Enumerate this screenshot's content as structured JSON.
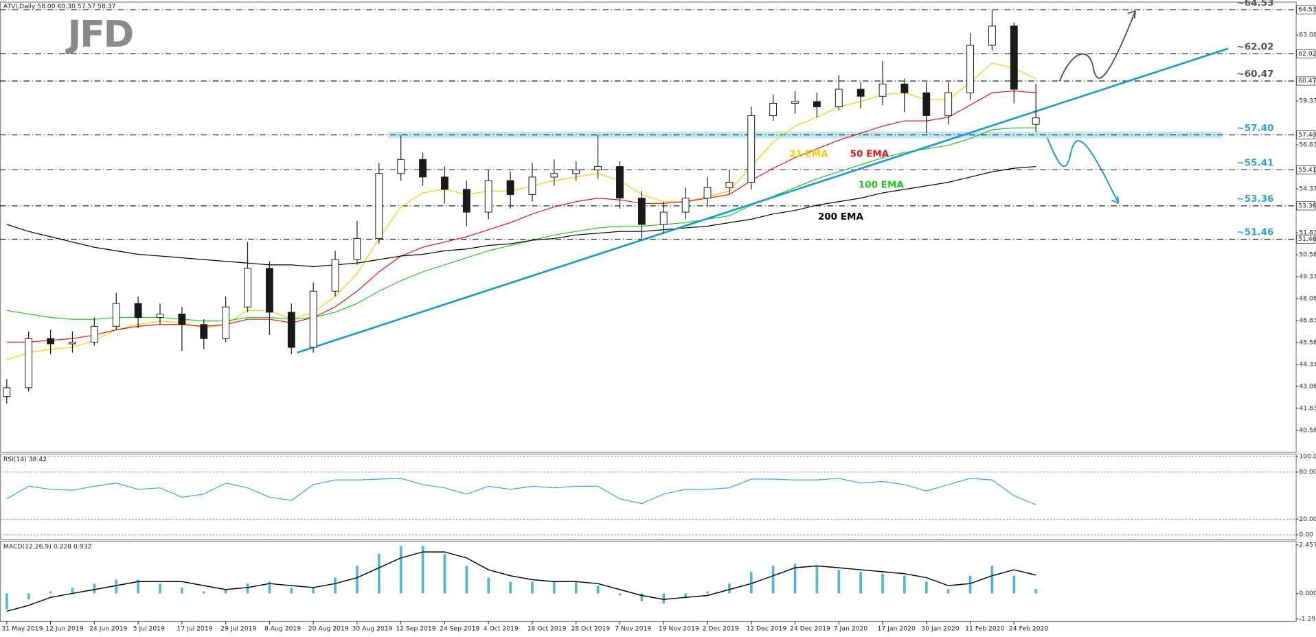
{
  "logo": "JFD",
  "chart_data": [
    {
      "type": "candlestick",
      "title": "ATVI,Daily  58.00 60.30 57.57 58.37",
      "categories": [
        "31 May 2019",
        null,
        "12 Jun 2019",
        null,
        "24 Jun 2019",
        null,
        "5 Jul 2019",
        null,
        "17 Jul 2019",
        null,
        "29 Jul 2019",
        null,
        "8 Aug 2019",
        null,
        "20 Aug 2019",
        null,
        "30 Aug 2019",
        null,
        "12 Sep 2019",
        null,
        "24 Sep 2019",
        null,
        "4 Oct 2019",
        null,
        "16 Oct 2019",
        null,
        "28 Oct 2019",
        null,
        "7 Nov 2019",
        null,
        "19 Nov 2019",
        null,
        "2 Dec 2019",
        null,
        "12 Dec 2019",
        null,
        "24 Dec 2019",
        null,
        "7 Jan 2020",
        null,
        "17 Jan 2020",
        null,
        "30 Jan 2020",
        null,
        "11 Feb 2020",
        null,
        "24 Feb 2020",
        null
      ],
      "open": [
        42.5,
        43.0,
        45.8,
        45.5,
        45.6,
        46.5,
        47.8,
        47.0,
        47.2,
        46.6,
        45.8,
        47.6,
        49.8,
        47.3,
        45.3,
        48.5,
        50.3,
        51.5,
        55.2,
        56.0,
        55.0,
        54.3,
        53.0,
        54.8,
        54.0,
        55.0,
        55.2,
        55.4,
        55.6,
        53.8,
        52.3,
        53.0,
        53.8,
        54.4,
        54.7,
        58.5,
        59.2,
        59.3,
        59.0,
        60.0,
        59.6,
        60.3,
        59.8,
        58.5,
        59.8,
        62.5,
        63.6,
        58.0
      ],
      "high": [
        43.5,
        46.2,
        46.3,
        46.2,
        47.0,
        48.4,
        48.2,
        47.8,
        47.6,
        46.9,
        48.2,
        51.3,
        50.2,
        47.8,
        49.0,
        50.8,
        52.5,
        55.8,
        57.4,
        56.4,
        55.6,
        54.8,
        55.4,
        55.3,
        55.8,
        56.0,
        55.9,
        57.4,
        55.9,
        54.2,
        53.6,
        54.4,
        55.0,
        55.4,
        59.0,
        59.7,
        59.9,
        59.8,
        60.8,
        60.4,
        61.6,
        60.6,
        60.4,
        60.4,
        63.2,
        64.53,
        63.8,
        60.3
      ],
      "low": [
        42.1,
        42.8,
        44.9,
        45.0,
        45.4,
        46.3,
        46.4,
        46.6,
        45.1,
        45.2,
        45.6,
        47.3,
        46.0,
        44.9,
        45.0,
        48.2,
        50.0,
        51.2,
        54.8,
        54.5,
        53.5,
        52.2,
        52.6,
        53.2,
        53.6,
        54.5,
        54.8,
        54.9,
        53.2,
        51.5,
        51.8,
        52.6,
        53.3,
        54.0,
        54.3,
        58.2,
        58.6,
        58.4,
        58.8,
        58.9,
        59.1,
        58.7,
        57.5,
        58.0,
        59.4,
        62.2,
        59.2,
        57.57
      ],
      "close": [
        43.0,
        45.8,
        45.5,
        45.6,
        46.5,
        47.8,
        47.0,
        47.2,
        46.6,
        45.8,
        47.6,
        49.8,
        47.3,
        45.3,
        48.5,
        50.3,
        51.5,
        55.2,
        56.0,
        55.0,
        54.3,
        53.0,
        54.8,
        54.0,
        55.0,
        55.2,
        55.4,
        55.6,
        53.8,
        52.3,
        53.0,
        53.8,
        54.4,
        54.7,
        58.5,
        59.2,
        59.3,
        59.0,
        60.0,
        59.6,
        60.3,
        59.8,
        58.5,
        59.8,
        62.5,
        63.6,
        60.0,
        58.37
      ],
      "up_color": "#ffffff",
      "down_color": "#1a1a1a",
      "series": [
        {
          "name": "21 EMA",
          "color": "#f2d000",
          "values": [
            44.6,
            45.0,
            45.2,
            45.3,
            45.7,
            46.3,
            46.6,
            46.8,
            46.7,
            46.4,
            46.6,
            47.4,
            47.4,
            46.9,
            47.3,
            48.2,
            49.5,
            51.5,
            53.3,
            54.1,
            54.3,
            54.0,
            54.2,
            54.2,
            54.5,
            54.8,
            55.0,
            55.2,
            54.8,
            54.0,
            53.6,
            53.6,
            53.9,
            54.2,
            55.6,
            57.0,
            57.9,
            58.4,
            59.0,
            59.3,
            59.7,
            59.8,
            59.4,
            59.4,
            60.4,
            61.5,
            61.2,
            60.6
          ]
        },
        {
          "name": "50 EMA",
          "color": "#e8141e",
          "values": [
            45.6,
            45.6,
            45.7,
            45.8,
            46.0,
            46.3,
            46.5,
            46.6,
            46.6,
            46.5,
            46.6,
            46.9,
            46.9,
            46.7,
            47.0,
            47.6,
            48.5,
            49.6,
            50.5,
            51.0,
            51.3,
            51.6,
            52.0,
            52.4,
            52.9,
            53.3,
            53.6,
            53.8,
            53.7,
            53.5,
            53.5,
            53.6,
            53.8,
            54.0,
            54.8,
            55.5,
            56.1,
            56.6,
            57.1,
            57.5,
            57.9,
            58.2,
            58.2,
            58.4,
            59.1,
            59.8,
            59.9,
            59.8
          ]
        },
        {
          "name": "100 EMA",
          "color": "#22c522",
          "values": [
            47.4,
            47.2,
            47.0,
            46.9,
            46.9,
            47.0,
            47.0,
            47.0,
            46.9,
            46.8,
            46.8,
            47.0,
            47.0,
            46.9,
            47.0,
            47.3,
            47.8,
            48.5,
            49.1,
            49.6,
            50.0,
            50.4,
            50.8,
            51.1,
            51.4,
            51.7,
            51.9,
            52.1,
            52.2,
            52.2,
            52.3,
            52.4,
            52.6,
            52.8,
            53.4,
            53.9,
            54.4,
            54.9,
            55.3,
            55.7,
            56.1,
            56.4,
            56.6,
            56.8,
            57.2,
            57.7,
            57.8,
            57.8
          ]
        },
        {
          "name": "200 EMA",
          "color": "#000000",
          "values": [
            52.3,
            51.9,
            51.6,
            51.3,
            51.0,
            50.8,
            50.6,
            50.5,
            50.4,
            50.3,
            50.2,
            50.1,
            50.0,
            50.0,
            49.9,
            50.0,
            50.1,
            50.3,
            50.5,
            50.6,
            50.8,
            50.9,
            51.1,
            51.2,
            51.4,
            51.5,
            51.7,
            51.8,
            51.9,
            51.9,
            52.0,
            52.1,
            52.2,
            52.4,
            52.6,
            52.9,
            53.1,
            53.4,
            53.6,
            53.8,
            54.1,
            54.3,
            54.5,
            54.7,
            55.0,
            55.3,
            55.5,
            55.6
          ]
        }
      ],
      "levels": [
        {
          "value": 64.53,
          "label": "64.53",
          "note": "~64.53",
          "color": "#555555"
        },
        {
          "value": 62.02,
          "label": "62.02",
          "note": "~62.02",
          "color": "#555555"
        },
        {
          "value": 60.47,
          "label": "60.47",
          "note": "~60.47",
          "color": "#555555"
        },
        {
          "value": 57.4,
          "label": "57.40",
          "note": "~57.40",
          "color": "#2aa4cf",
          "highlight": true
        },
        {
          "value": 55.41,
          "label": "55.41",
          "note": "~55.41",
          "color": "#2aa4cf"
        },
        {
          "value": 53.36,
          "label": "53.36",
          "note": "~53.36",
          "color": "#2aa4cf"
        },
        {
          "value": 51.46,
          "label": "51.46",
          "note": "~51.46",
          "color": "#2aa4cf"
        }
      ],
      "trendline": {
        "x": [
          13.26,
          55.78
        ],
        "y": [
          45.0,
          62.32
        ],
        "color": "#1a9bd0"
      },
      "ylim": [
        39.34,
        64.94
      ],
      "yticks": [
        63.08,
        59.33,
        56.83,
        54.33,
        51.83,
        50.58,
        49.33,
        48.08,
        46.83,
        45.58,
        44.33,
        43.08,
        41.83,
        40.58
      ]
    },
    {
      "type": "line",
      "title": "RSI(14) 38.42",
      "color": "#3aa6d8",
      "values": [
        46,
        62,
        58,
        57,
        62,
        66,
        58,
        60,
        48,
        52,
        66,
        60,
        48,
        44,
        64,
        70,
        70,
        71,
        72,
        64,
        60,
        52,
        62,
        58,
        62,
        60,
        62,
        62,
        46,
        40,
        52,
        58,
        58,
        60,
        71,
        71,
        70,
        70,
        72,
        66,
        68,
        64,
        56,
        64,
        72,
        70,
        50,
        38.42
      ],
      "ylim": [
        -6.4,
        102.4
      ],
      "yticks": [
        {
          "value": 100,
          "label": "100.00"
        },
        {
          "value": 80,
          "label": "80.00"
        },
        {
          "value": 20,
          "label": "20.00"
        },
        {
          "value": 0,
          "label": "0.00"
        }
      ],
      "grid": true
    },
    {
      "type": "macd",
      "title": "MACD(12,26,9) 0.228 0.932",
      "series": [
        {
          "color": "#4fb8d8",
          "values": [
            -0.8,
            -0.3,
            0.1,
            0.3,
            0.5,
            0.7,
            0.7,
            0.5,
            0.3,
            0.1,
            0.2,
            0.5,
            0.6,
            0.3,
            0.3,
            0.8,
            1.4,
            2.0,
            2.4,
            2.4,
            2.0,
            1.4,
            0.8,
            0.6,
            0.6,
            0.6,
            0.6,
            0.4,
            -0.1,
            -0.4,
            -0.5,
            -0.2,
            0.1,
            0.5,
            1.1,
            1.4,
            1.5,
            1.4,
            1.2,
            1.1,
            1.0,
            0.9,
            0.6,
            0.2,
            0.9,
            1.4,
            0.9,
            0.228
          ]
        },
        {
          "color": "#000000",
          "values": [
            -0.9,
            -0.6,
            -0.2,
            0.0,
            0.2,
            0.4,
            0.6,
            0.6,
            0.6,
            0.4,
            0.2,
            0.3,
            0.5,
            0.4,
            0.3,
            0.5,
            0.8,
            1.3,
            1.8,
            2.1,
            2.1,
            1.8,
            1.2,
            0.9,
            0.7,
            0.6,
            0.6,
            0.5,
            0.2,
            -0.1,
            -0.3,
            -0.2,
            -0.1,
            0.2,
            0.5,
            0.9,
            1.3,
            1.4,
            1.3,
            1.2,
            1.1,
            1.0,
            0.8,
            0.4,
            0.5,
            0.9,
            1.2,
            0.932
          ]
        }
      ],
      "ylim": [
        -1.398,
        2.627
      ],
      "yticks": [
        2.457,
        {
          "value": 0,
          "label": "0.000"
        },
        -1.295
      ]
    }
  ]
}
